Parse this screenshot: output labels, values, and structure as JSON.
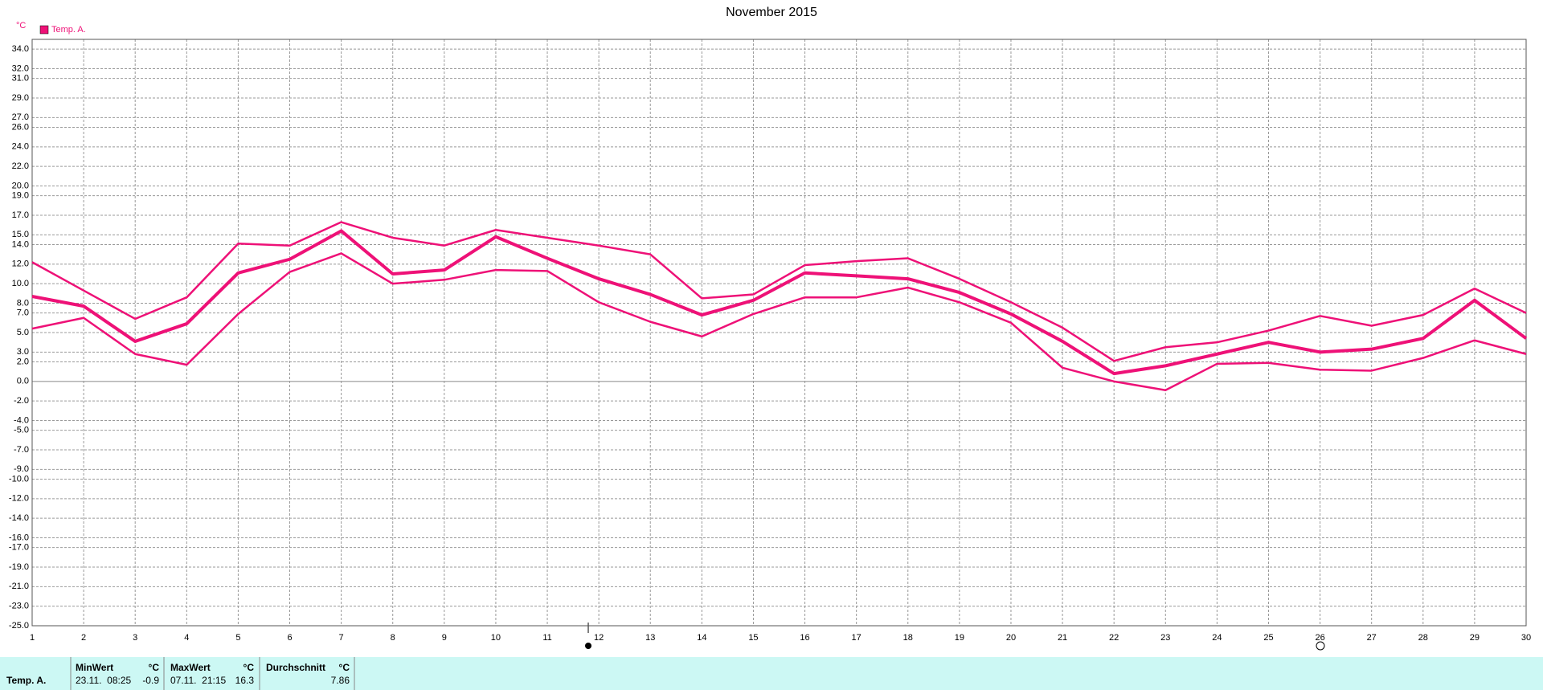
{
  "chart_data": {
    "type": "line",
    "title": "November 2015",
    "y_label": "°C",
    "x": [
      1,
      2,
      3,
      4,
      5,
      6,
      7,
      8,
      9,
      10,
      11,
      12,
      13,
      14,
      15,
      16,
      17,
      18,
      19,
      20,
      21,
      22,
      23,
      24,
      25,
      26,
      27,
      28,
      29,
      30
    ],
    "series": [
      {
        "name": "Temp. A.",
        "color": "#ee1177",
        "values": [
          8.7,
          7.7,
          4.1,
          5.9,
          11.1,
          12.5,
          15.4,
          11.0,
          11.4,
          14.8,
          12.6,
          10.5,
          8.9,
          6.8,
          8.3,
          11.1,
          10.8,
          10.5,
          9.1,
          6.9,
          4.1,
          0.8,
          1.6,
          2.8,
          4.0,
          3.0,
          3.3,
          4.4,
          8.3,
          4.4
        ]
      },
      {
        "color": "#ee1177",
        "values": [
          12.2,
          9.3,
          6.4,
          8.6,
          14.1,
          13.9,
          16.3,
          14.7,
          13.9,
          15.5,
          14.7,
          13.9,
          13.0,
          8.5,
          8.9,
          11.9,
          12.3,
          12.6,
          10.5,
          8.1,
          5.5,
          2.1,
          3.5,
          4.0,
          5.2,
          6.7,
          5.7,
          6.8,
          9.5,
          7.0
        ]
      },
      {
        "color": "#ee1177",
        "values": [
          5.4,
          6.5,
          2.8,
          1.7,
          6.9,
          11.2,
          13.1,
          10.0,
          10.4,
          11.4,
          11.3,
          8.1,
          6.1,
          4.6,
          6.9,
          8.6,
          8.6,
          9.6,
          8.1,
          6.0,
          1.4,
          0.0,
          -0.9,
          1.8,
          1.9,
          1.2,
          1.1,
          2.4,
          4.2,
          2.8
        ]
      }
    ],
    "xlim": [
      1,
      30
    ],
    "xticks": [
      1,
      2,
      3,
      4,
      5,
      6,
      7,
      8,
      9,
      10,
      11,
      12,
      13,
      14,
      15,
      16,
      17,
      18,
      19,
      20,
      21,
      22,
      23,
      24,
      25,
      26,
      27,
      28,
      29,
      30
    ],
    "ylim": [
      -25,
      35
    ],
    "yticks": [
      {
        "value": 34,
        "label": "34.0"
      },
      {
        "value": 32,
        "label": "32.0"
      },
      {
        "value": 31,
        "label": "31.0"
      },
      {
        "value": 29,
        "label": "29.0"
      },
      {
        "value": 27,
        "label": "27.0"
      },
      {
        "value": 26,
        "label": "26.0"
      },
      {
        "value": 24,
        "label": "24.0"
      },
      {
        "value": 22,
        "label": "22.0"
      },
      {
        "value": 20,
        "label": "20.0"
      },
      {
        "value": 19,
        "label": "19.0"
      },
      {
        "value": 17,
        "label": "17.0"
      },
      {
        "value": 15,
        "label": "15.0"
      },
      {
        "value": 14,
        "label": "14.0"
      },
      {
        "value": 12,
        "label": "12.0"
      },
      {
        "value": 10,
        "label": "10.0"
      },
      {
        "value": 8,
        "label": "8.0"
      },
      {
        "value": 7,
        "label": "7.0"
      },
      {
        "value": 5,
        "label": "5.0"
      },
      {
        "value": 3,
        "label": "3.0"
      },
      {
        "value": 2,
        "label": "2.0"
      },
      {
        "value": 0,
        "label": "0.0"
      },
      {
        "value": -2,
        "label": "-2.0"
      },
      {
        "value": -4,
        "label": "-4.0"
      },
      {
        "value": -5,
        "label": "-5.0"
      },
      {
        "value": -7,
        "label": "-7.0"
      },
      {
        "value": -9,
        "label": "-9.0"
      },
      {
        "value": -10,
        "label": "-10.0"
      },
      {
        "value": -12,
        "label": "-12.0"
      },
      {
        "value": -14,
        "label": "-14.0"
      },
      {
        "value": -16,
        "label": "-16.0"
      },
      {
        "value": -17,
        "label": "-17.0"
      },
      {
        "value": -19,
        "label": "-19.0"
      },
      {
        "value": -21,
        "label": "-21.0"
      },
      {
        "value": -23,
        "label": "-23.0"
      },
      {
        "value": -25,
        "label": "-25.0"
      }
    ],
    "grid": true,
    "legend": "top-left"
  },
  "summary": {
    "row_label": "Temp. A.",
    "headers": [
      "MinWert",
      "°C",
      "MaxWert",
      "°C",
      "Durchschnitt",
      "°C"
    ],
    "cells": [
      "23.11.  08:25",
      -0.9,
      "07.11.  21:15",
      16.3,
      7.86
    ]
  }
}
